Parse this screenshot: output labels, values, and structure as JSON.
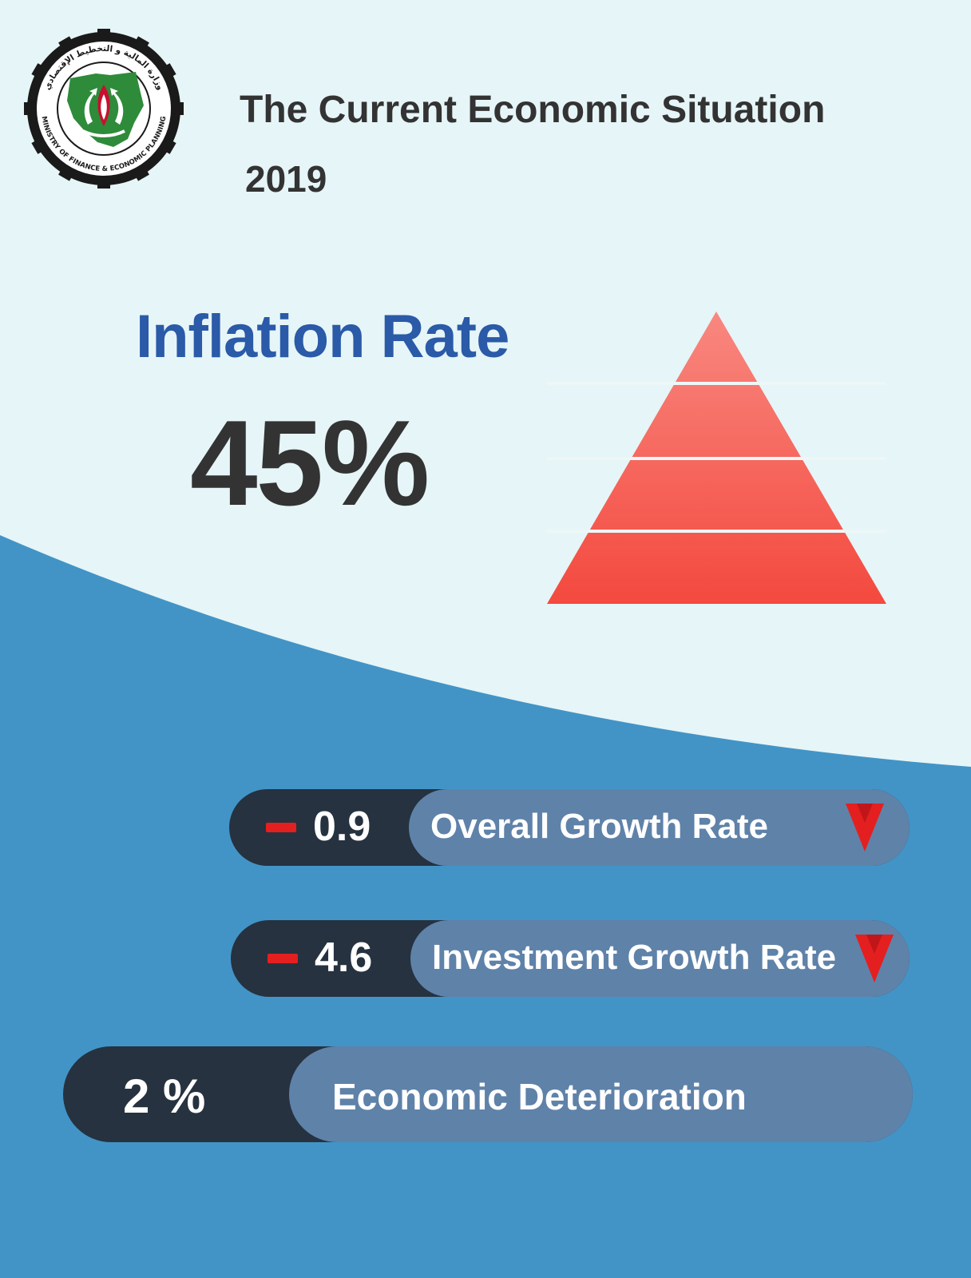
{
  "header": {
    "title": "The Current Economic Situation",
    "year": "2019"
  },
  "logo": {
    "arabic_text": "وزارة المالية و التخطيط الإقتصادي",
    "english_text": "MINISTRY OF FINANCE & ECONOMIC PLANNING"
  },
  "inflation": {
    "label": "Inflation Rate",
    "value": "45%"
  },
  "stats": {
    "overall": {
      "value": "0.9",
      "label": "Overall Growth Rate",
      "negative": true,
      "trend": "down"
    },
    "investment": {
      "value": "4.6",
      "label": "Investment Growth Rate",
      "negative": true,
      "trend": "down"
    },
    "deterioration": {
      "value": "2 %",
      "label": "Economic Deterioration"
    }
  },
  "colors": {
    "background_light": "#e6f5f7",
    "background_blue": "#4294c6",
    "title_dark": "#333333",
    "inflation_blue": "#2a5aa8",
    "pill_dark": "#263240",
    "pill_light": "#5f82a9",
    "accent_red": "#e41f1f",
    "pyramid_red": "#f4564a"
  }
}
